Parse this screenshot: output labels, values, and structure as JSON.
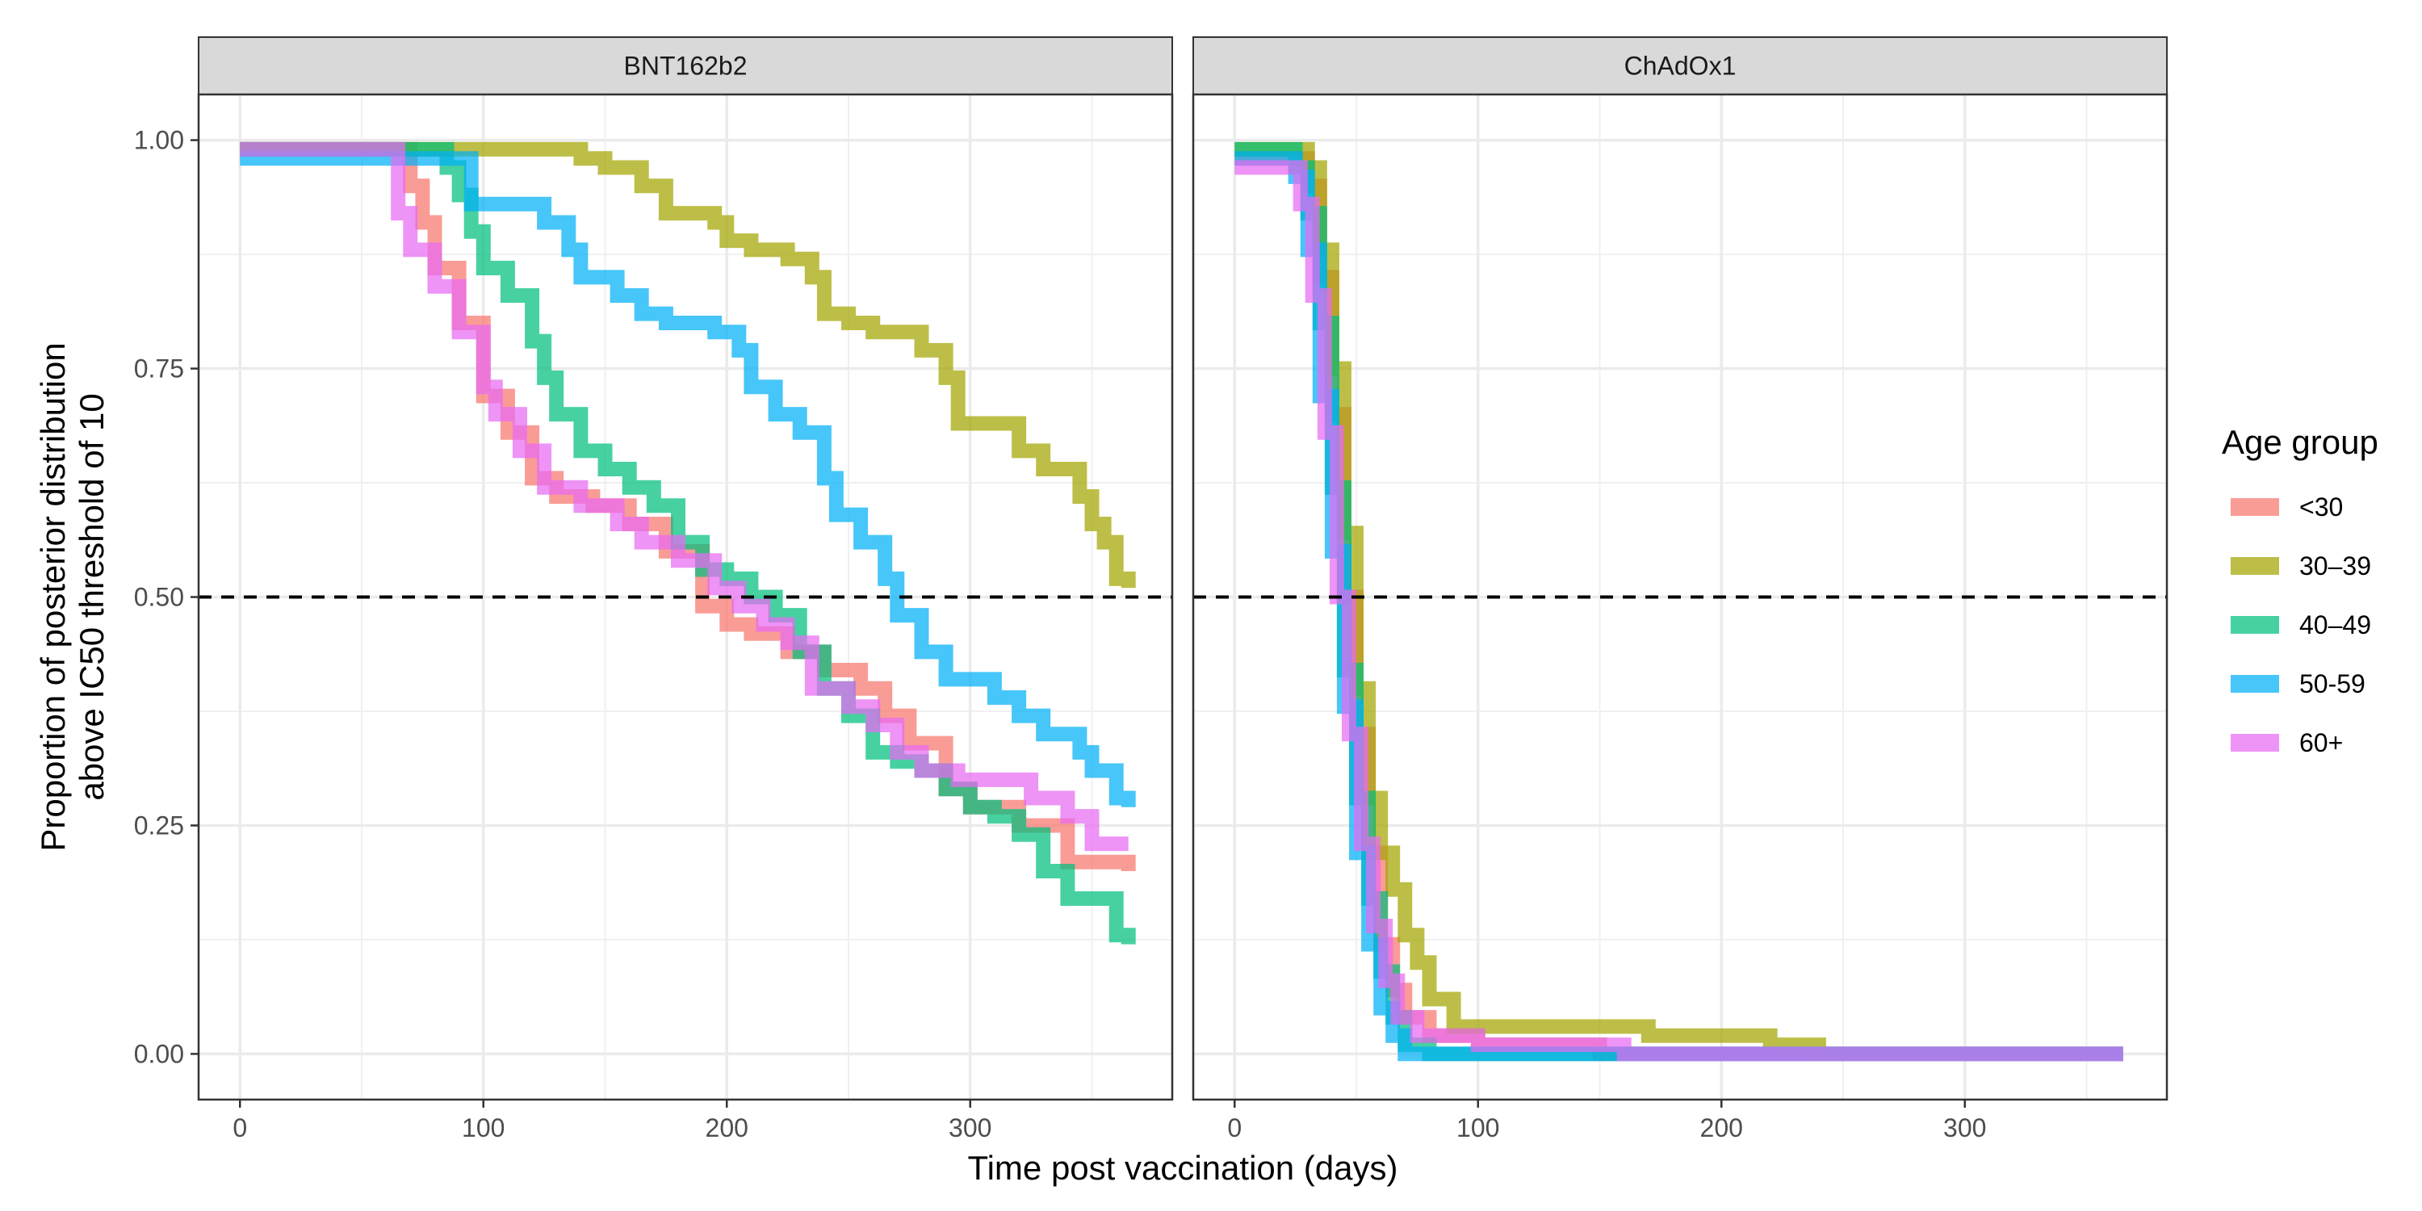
{
  "chart_data": {
    "type": "line",
    "xlabel": "Time post vaccination (days)",
    "ylabel_line1": "Proportion of posterior distribution",
    "ylabel_line2": "above IC50 threshold of 10",
    "xlim": [
      -17,
      383
    ],
    "ylim": [
      -0.05,
      1.05
    ],
    "x_ticks": [
      0,
      100,
      200,
      300
    ],
    "y_ticks": [
      0.0,
      0.25,
      0.5,
      0.75,
      1.0
    ],
    "y_tick_labels": [
      "0.00",
      "0.25",
      "0.50",
      "0.75",
      "1.00"
    ],
    "x_tick_labels": [
      "0",
      "100",
      "200",
      "300"
    ],
    "reference_line": {
      "y": 0.5,
      "style": "dashed",
      "color": "#000000"
    },
    "grid": true,
    "legend": {
      "title": "Age group",
      "placement": "right"
    },
    "colors": {
      "<30": "#F8766D",
      "30–39": "#A3A500",
      "40–49": "#00BF7D",
      "50-59": "#00B0F6",
      "60+": "#E76BF3"
    },
    "facets": [
      {
        "title": "BNT162b2",
        "series": [
          {
            "name": "<30",
            "points": [
              [
                0,
                0.99
              ],
              [
                65,
                0.99
              ],
              [
                70,
                0.95
              ],
              [
                75,
                0.91
              ],
              [
                80,
                0.86
              ],
              [
                90,
                0.8
              ],
              [
                100,
                0.72
              ],
              [
                110,
                0.68
              ],
              [
                120,
                0.63
              ],
              [
                130,
                0.61
              ],
              [
                145,
                0.6
              ],
              [
                160,
                0.58
              ],
              [
                175,
                0.55
              ],
              [
                190,
                0.49
              ],
              [
                200,
                0.47
              ],
              [
                210,
                0.46
              ],
              [
                225,
                0.44
              ],
              [
                240,
                0.42
              ],
              [
                255,
                0.4
              ],
              [
                265,
                0.37
              ],
              [
                275,
                0.34
              ],
              [
                290,
                0.29
              ],
              [
                300,
                0.27
              ],
              [
                320,
                0.25
              ],
              [
                340,
                0.21
              ],
              [
                365,
                0.2
              ]
            ]
          },
          {
            "name": "30–39",
            "points": [
              [
                0,
                0.99
              ],
              [
                130,
                0.99
              ],
              [
                140,
                0.98
              ],
              [
                150,
                0.97
              ],
              [
                165,
                0.95
              ],
              [
                175,
                0.92
              ],
              [
                195,
                0.91
              ],
              [
                200,
                0.89
              ],
              [
                210,
                0.88
              ],
              [
                225,
                0.87
              ],
              [
                235,
                0.85
              ],
              [
                240,
                0.81
              ],
              [
                250,
                0.8
              ],
              [
                260,
                0.79
              ],
              [
                270,
                0.79
              ],
              [
                280,
                0.77
              ],
              [
                290,
                0.74
              ],
              [
                295,
                0.69
              ],
              [
                310,
                0.69
              ],
              [
                320,
                0.66
              ],
              [
                330,
                0.64
              ],
              [
                345,
                0.61
              ],
              [
                350,
                0.58
              ],
              [
                355,
                0.56
              ],
              [
                360,
                0.52
              ],
              [
                365,
                0.51
              ]
            ]
          },
          {
            "name": "40–49",
            "points": [
              [
                0,
                0.99
              ],
              [
                80,
                0.99
              ],
              [
                85,
                0.97
              ],
              [
                90,
                0.94
              ],
              [
                95,
                0.9
              ],
              [
                100,
                0.86
              ],
              [
                110,
                0.83
              ],
              [
                120,
                0.78
              ],
              [
                125,
                0.74
              ],
              [
                130,
                0.7
              ],
              [
                140,
                0.66
              ],
              [
                150,
                0.64
              ],
              [
                160,
                0.62
              ],
              [
                170,
                0.6
              ],
              [
                180,
                0.56
              ],
              [
                190,
                0.53
              ],
              [
                200,
                0.52
              ],
              [
                210,
                0.5
              ],
              [
                220,
                0.48
              ],
              [
                230,
                0.44
              ],
              [
                240,
                0.4
              ],
              [
                250,
                0.37
              ],
              [
                260,
                0.33
              ],
              [
                270,
                0.32
              ],
              [
                280,
                0.31
              ],
              [
                290,
                0.29
              ],
              [
                300,
                0.27
              ],
              [
                310,
                0.26
              ],
              [
                320,
                0.24
              ],
              [
                330,
                0.2
              ],
              [
                340,
                0.17
              ],
              [
                350,
                0.17
              ],
              [
                360,
                0.13
              ],
              [
                365,
                0.12
              ]
            ]
          },
          {
            "name": "50-59",
            "points": [
              [
                0,
                0.98
              ],
              [
                85,
                0.98
              ],
              [
                95,
                0.93
              ],
              [
                115,
                0.93
              ],
              [
                125,
                0.91
              ],
              [
                135,
                0.88
              ],
              [
                140,
                0.85
              ],
              [
                155,
                0.83
              ],
              [
                165,
                0.81
              ],
              [
                175,
                0.8
              ],
              [
                195,
                0.79
              ],
              [
                205,
                0.77
              ],
              [
                210,
                0.73
              ],
              [
                220,
                0.7
              ],
              [
                230,
                0.68
              ],
              [
                240,
                0.63
              ],
              [
                245,
                0.59
              ],
              [
                255,
                0.56
              ],
              [
                265,
                0.52
              ],
              [
                270,
                0.48
              ],
              [
                280,
                0.44
              ],
              [
                290,
                0.41
              ],
              [
                300,
                0.41
              ],
              [
                310,
                0.39
              ],
              [
                320,
                0.37
              ],
              [
                330,
                0.35
              ],
              [
                345,
                0.33
              ],
              [
                350,
                0.31
              ],
              [
                360,
                0.28
              ],
              [
                365,
                0.27
              ]
            ]
          },
          {
            "name": "60+",
            "points": [
              [
                0,
                0.99
              ],
              [
                60,
                0.99
              ],
              [
                65,
                0.92
              ],
              [
                70,
                0.88
              ],
              [
                80,
                0.84
              ],
              [
                90,
                0.79
              ],
              [
                100,
                0.73
              ],
              [
                105,
                0.7
              ],
              [
                115,
                0.66
              ],
              [
                125,
                0.62
              ],
              [
                140,
                0.6
              ],
              [
                155,
                0.58
              ],
              [
                165,
                0.56
              ],
              [
                180,
                0.54
              ],
              [
                195,
                0.51
              ],
              [
                205,
                0.49
              ],
              [
                215,
                0.47
              ],
              [
                225,
                0.45
              ],
              [
                235,
                0.4
              ],
              [
                250,
                0.38
              ],
              [
                260,
                0.36
              ],
              [
                270,
                0.33
              ],
              [
                280,
                0.31
              ],
              [
                295,
                0.3
              ],
              [
                310,
                0.3
              ],
              [
                325,
                0.28
              ],
              [
                340,
                0.26
              ],
              [
                350,
                0.23
              ],
              [
                365,
                0.23
              ]
            ]
          }
        ]
      },
      {
        "title": "ChAdOx1",
        "series": [
          {
            "name": "<30",
            "points": [
              [
                0,
                0.98
              ],
              [
                25,
                0.98
              ],
              [
                30,
                0.95
              ],
              [
                35,
                0.85
              ],
              [
                40,
                0.7
              ],
              [
                45,
                0.5
              ],
              [
                50,
                0.35
              ],
              [
                55,
                0.22
              ],
              [
                60,
                0.12
              ],
              [
                65,
                0.07
              ],
              [
                70,
                0.04
              ],
              [
                80,
                0.02
              ],
              [
                100,
                0.01
              ],
              [
                150,
                0.0
              ],
              [
                365,
                0.0
              ]
            ]
          },
          {
            "name": "30–39",
            "points": [
              [
                0,
                0.99
              ],
              [
                25,
                0.99
              ],
              [
                30,
                0.97
              ],
              [
                35,
                0.88
              ],
              [
                40,
                0.75
              ],
              [
                45,
                0.57
              ],
              [
                50,
                0.4
              ],
              [
                55,
                0.28
              ],
              [
                60,
                0.22
              ],
              [
                65,
                0.18
              ],
              [
                70,
                0.13
              ],
              [
                75,
                0.1
              ],
              [
                80,
                0.06
              ],
              [
                90,
                0.03
              ],
              [
                160,
                0.03
              ],
              [
                170,
                0.02
              ],
              [
                210,
                0.02
              ],
              [
                220,
                0.01
              ],
              [
                230,
                0.01
              ],
              [
                240,
                0.0
              ],
              [
                365,
                0.0
              ]
            ]
          },
          {
            "name": "40–49",
            "points": [
              [
                0,
                0.99
              ],
              [
                20,
                0.99
              ],
              [
                25,
                0.97
              ],
              [
                30,
                0.92
              ],
              [
                35,
                0.8
              ],
              [
                40,
                0.62
              ],
              [
                45,
                0.42
              ],
              [
                50,
                0.28
              ],
              [
                55,
                0.17
              ],
              [
                60,
                0.09
              ],
              [
                65,
                0.04
              ],
              [
                70,
                0.01
              ],
              [
                80,
                0.0
              ],
              [
                365,
                0.0
              ]
            ]
          },
          {
            "name": "50-59",
            "points": [
              [
                0,
                0.98
              ],
              [
                20,
                0.98
              ],
              [
                25,
                0.96
              ],
              [
                30,
                0.88
              ],
              [
                35,
                0.72
              ],
              [
                40,
                0.55
              ],
              [
                45,
                0.38
              ],
              [
                50,
                0.22
              ],
              [
                55,
                0.12
              ],
              [
                60,
                0.05
              ],
              [
                65,
                0.02
              ],
              [
                70,
                0.0
              ],
              [
                365,
                0.0
              ]
            ]
          },
          {
            "name": "60+",
            "points": [
              [
                0,
                0.97
              ],
              [
                22,
                0.97
              ],
              [
                27,
                0.93
              ],
              [
                32,
                0.83
              ],
              [
                37,
                0.68
              ],
              [
                42,
                0.5
              ],
              [
                47,
                0.35
              ],
              [
                52,
                0.23
              ],
              [
                57,
                0.14
              ],
              [
                62,
                0.08
              ],
              [
                67,
                0.04
              ],
              [
                75,
                0.02
              ],
              [
                100,
                0.01
              ],
              [
                160,
                0.0
              ],
              [
                365,
                0.0
              ]
            ]
          }
        ]
      }
    ]
  }
}
